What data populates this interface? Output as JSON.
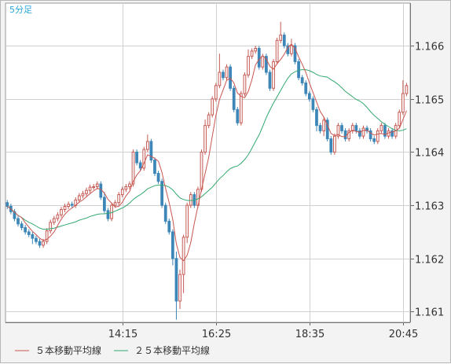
{
  "chart_data": {
    "type": "candlestick",
    "interval_label": "5分足",
    "colors": {
      "up": "#c55a54",
      "down": "#3d86b8",
      "ma5": "#c9554f",
      "ma25": "#33a870",
      "grid": "#d0d0d0",
      "plot_bg": "#ffffff"
    },
    "xaxis": {
      "tick_labels": [
        "14:15",
        "16:25",
        "18:35",
        "20:45"
      ],
      "tick_index": [
        32,
        58,
        84,
        110
      ],
      "count": 112
    },
    "yaxis": {
      "ylim": [
        1.1608,
        1.1668
      ],
      "ticks": [
        1.161,
        1.162,
        1.163,
        1.164,
        1.165,
        1.166
      ],
      "tick_labels": [
        "1.161",
        "1.162",
        "1.163",
        "1.164",
        "1.165",
        "1.166"
      ]
    },
    "legend": [
      {
        "label": "５本移動平均線",
        "series": "ma5"
      },
      {
        "label": "２５本移動平均線",
        "series": "ma25"
      }
    ],
    "candles": [],
    "ma5": [],
    "ma25": []
  }
}
